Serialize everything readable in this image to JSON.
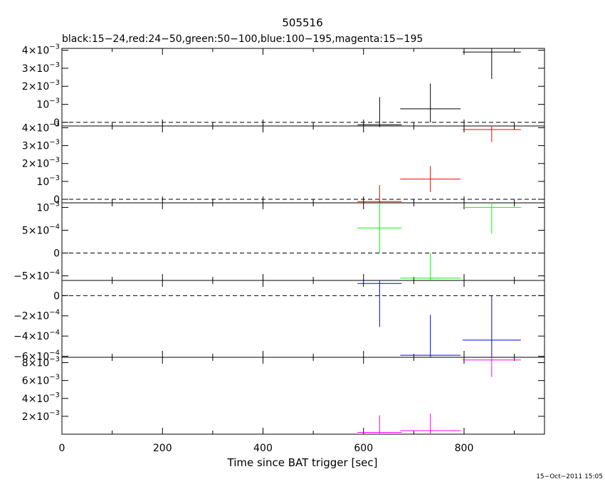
{
  "chart_data": {
    "type": "scatter",
    "title": "505516",
    "subtitle": "black:15−24,red:24−50,green:50−100,blue:100−195,magenta:15−195",
    "xlabel": "Time since BAT trigger [sec]",
    "xlim": [
      0,
      960
    ],
    "x_ticks": [
      0,
      200,
      400,
      600,
      800
    ],
    "timestamp": "15−Oct−2011 15:05",
    "panels": [
      {
        "name": "black",
        "color": "#000000",
        "ylim": [
          -0.0002,
          0.0041
        ],
        "ticks": [
          {
            "v": 0,
            "m": "0",
            "e": ""
          },
          {
            "v": 0.001,
            "m": "10",
            "e": "−3"
          },
          {
            "v": 0.002,
            "m": "2×10",
            "e": "−3"
          },
          {
            "v": 0.003,
            "m": "3×10",
            "e": "−3"
          },
          {
            "v": 0.004,
            "m": "4×10",
            "e": "−3"
          }
        ],
        "points": [
          {
            "x": 632,
            "xerr": 44,
            "y": -0.00013,
            "yerr_hi": 0.00153,
            "yerr_lo": 0.00013
          },
          {
            "x": 733,
            "xerr": 60,
            "y": 0.00075,
            "yerr_hi": 0.0014,
            "yerr_lo": 0.00075
          },
          {
            "x": 855,
            "xerr": 58,
            "y": 0.0039,
            "yerr_hi": 0.0002,
            "yerr_lo": 0.0015
          }
        ]
      },
      {
        "name": "red",
        "color": "#ff0000",
        "ylim": [
          -0.0002,
          0.0041
        ],
        "ticks": [
          {
            "v": 0,
            "m": "0",
            "e": ""
          },
          {
            "v": 0.001,
            "m": "10",
            "e": "−3"
          },
          {
            "v": 0.002,
            "m": "2×10",
            "e": "−3"
          },
          {
            "v": 0.003,
            "m": "3×10",
            "e": "−3"
          },
          {
            "v": 0.004,
            "m": "4×10",
            "e": "−3"
          }
        ],
        "points": [
          {
            "x": 632,
            "xerr": 44,
            "y": -0.00013,
            "yerr_hi": 0.00093,
            "yerr_lo": 0.00013
          },
          {
            "x": 733,
            "xerr": 60,
            "y": 0.00113,
            "yerr_hi": 0.00073,
            "yerr_lo": 0.00073
          },
          {
            "x": 855,
            "xerr": 58,
            "y": 0.0039,
            "yerr_hi": 0.0002,
            "yerr_lo": 0.0007
          }
        ]
      },
      {
        "name": "green",
        "color": "#00ff00",
        "ylim": [
          -0.0006,
          0.0011
        ],
        "ticks": [
          {
            "v": -0.0005,
            "m": "−5×10",
            "e": "−4"
          },
          {
            "v": 0,
            "m": "0",
            "e": ""
          },
          {
            "v": 0.0005,
            "m": "5×10",
            "e": "−4"
          },
          {
            "v": 0.001,
            "m": "10",
            "e": "−3"
          }
        ],
        "points": [
          {
            "x": 632,
            "xerr": 44,
            "y": 0.00055,
            "yerr_hi": 0.00055,
            "yerr_lo": 0.00055
          },
          {
            "x": 733,
            "xerr": 60,
            "y": -0.00055,
            "yerr_hi": 0.00055,
            "yerr_lo": 5e-05
          },
          {
            "x": 855,
            "xerr": 58,
            "y": 0.001,
            "yerr_hi": 0.0001,
            "yerr_lo": 0.00058
          }
        ]
      },
      {
        "name": "blue",
        "color": "#0000ff",
        "ylim": [
          -0.00061,
          0.00015
        ],
        "ticks": [
          {
            "v": -0.0006,
            "m": "−6×10",
            "e": "−4"
          },
          {
            "v": -0.0004,
            "m": "−4×10",
            "e": "−4"
          },
          {
            "v": -0.0002,
            "m": "−2×10",
            "e": "−4"
          },
          {
            "v": 0,
            "m": "0",
            "e": ""
          }
        ],
        "points": [
          {
            "x": 632,
            "xerr": 44,
            "y": 0.00012,
            "yerr_hi": 3e-05,
            "yerr_lo": 0.00043
          },
          {
            "x": 733,
            "xerr": 60,
            "y": -0.00059,
            "yerr_hi": 0.0004,
            "yerr_lo": 2e-05
          },
          {
            "x": 855,
            "xerr": 58,
            "y": -0.00044,
            "yerr_hi": 0.00044,
            "yerr_lo": 0.00017
          }
        ]
      },
      {
        "name": "magenta",
        "color": "#ff00ff",
        "ylim": [
          0,
          0.0086
        ],
        "ticks": [
          {
            "v": 0.002,
            "m": "2×10",
            "e": "−3"
          },
          {
            "v": 0.004,
            "m": "4×10",
            "e": "−3"
          },
          {
            "v": 0.006,
            "m": "6×10",
            "e": "−3"
          },
          {
            "v": 0.008,
            "m": "8×10",
            "e": "−3"
          }
        ],
        "points": [
          {
            "x": 632,
            "xerr": 44,
            "y": 0.0002,
            "yerr_hi": 0.0019,
            "yerr_lo": 0.0002
          },
          {
            "x": 733,
            "xerr": 60,
            "y": 0.0004,
            "yerr_hi": 0.0019,
            "yerr_lo": 0.0004
          },
          {
            "x": 855,
            "xerr": 58,
            "y": 0.0083,
            "yerr_hi": 0.0003,
            "yerr_lo": 0.0019
          }
        ]
      }
    ]
  }
}
